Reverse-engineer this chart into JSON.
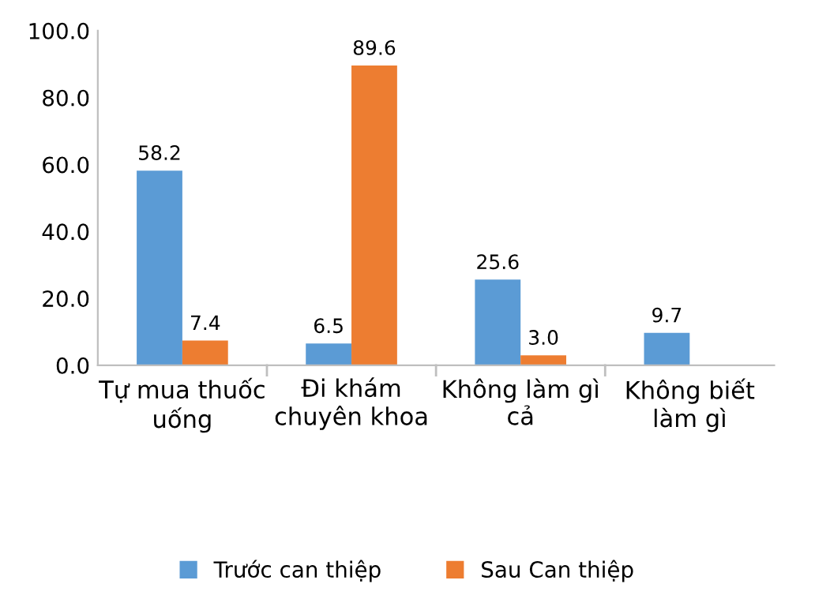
{
  "chart_data": {
    "type": "bar",
    "categories": [
      "Tự mua thuốc\nuống",
      "Đi khám\nchuyên khoa",
      "Không làm gì\ncả",
      "Không biết\nlàm gì"
    ],
    "series": [
      {
        "name": "Trước can thiệp",
        "color": "#5b9bd5",
        "values": [
          58.2,
          6.5,
          25.6,
          9.7
        ],
        "value_labels": [
          "58.2",
          "6.5",
          "25.6",
          "9.7"
        ]
      },
      {
        "name": "Sau Can thiệp",
        "color": "#ed7d31",
        "values": [
          7.4,
          89.6,
          3.0,
          null
        ],
        "value_labels": [
          "7.4",
          "89.6",
          "3.0",
          null
        ]
      }
    ],
    "ylim": [
      0,
      100
    ],
    "yticks": [
      {
        "value": 0,
        "label": "0.0"
      },
      {
        "value": 20,
        "label": "20.0"
      },
      {
        "value": 40,
        "label": "40.0"
      },
      {
        "value": 60,
        "label": "60.0"
      },
      {
        "value": 80,
        "label": "80.0"
      },
      {
        "value": 100,
        "label": "100.0"
      }
    ],
    "grid": false,
    "legend": "bottom"
  }
}
